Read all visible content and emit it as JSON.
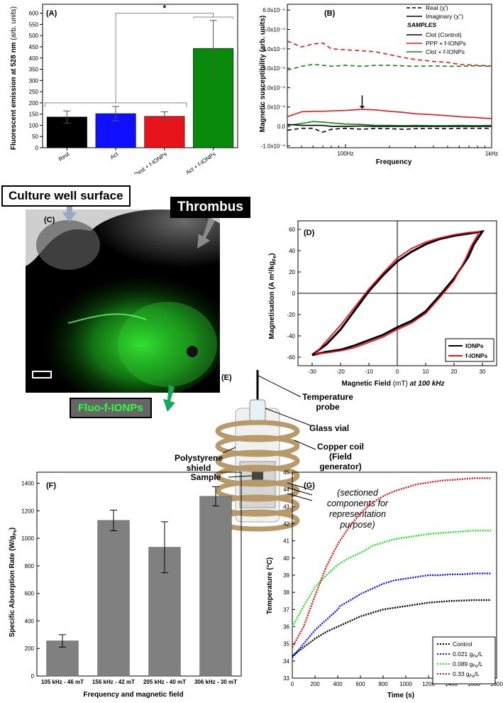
{
  "panelA": {
    "label": "(A)",
    "ylabel": "Fluorescent emission at 528 nm",
    "ylabel_unit": "(arb. units)",
    "sig": "*",
    "yticks": [
      "0",
      "50",
      "100",
      "150",
      "200",
      "250",
      "300",
      "350",
      "400",
      "450",
      "500",
      "550",
      "600"
    ]
  },
  "panelB": {
    "label": "(B)",
    "ylabel": "Magnetic susceptibility (arb. units)",
    "xlabel": "Frequency",
    "xticks": [
      "100Hz",
      "1kHz"
    ],
    "yticks": [
      "-1.0x10⁻⁴",
      "0.0",
      "1.0x10⁻⁴",
      "2.0x10⁻⁴",
      "3.0x10⁻⁴",
      "4.0x10⁻⁴",
      "5.0x10⁻⁴",
      "6.0x10⁻⁴"
    ],
    "legend_real": "Real (χ')",
    "legend_imag": "Imaginary (χ'')",
    "legend_samples": "SAMPLES",
    "legend_clot": "Clot (Control)",
    "legend_ppp": "PPP + f-IONPs",
    "legend_clotf": "Clot + f-IONPs"
  },
  "panelC": {
    "label": "(C)",
    "callout_well": "Culture well surface",
    "callout_thrombus": "Thrombus",
    "callout_fluo": "Fluo-f-IONPs"
  },
  "panelD": {
    "label": "(D)",
    "ylabel": "Magnetisation (A m²/kg",
    "ylabel_sub": "Fe",
    "xlabel": "Magnetic Field",
    "xlabel_unit": "(mT)",
    "xlabel_freq": "at 100 kHz",
    "legend": [
      "IONPs",
      "f-IONPs"
    ],
    "xticks": [
      "-30",
      "-20",
      "-10",
      "0",
      "10",
      "20",
      "30"
    ],
    "yticks": [
      "-60",
      "-40",
      "-20",
      "0",
      "20",
      "40",
      "60"
    ]
  },
  "panelE": {
    "label": "(E)",
    "temp_probe": "Temperature probe",
    "glass_vial": "Glass vial",
    "copper_coil": "Copper coil (Field generator)",
    "poly_shield": "Polystyrene shield",
    "sample": "Sample",
    "sectioned": "(sectioned components for representation purpose)"
  },
  "panelF": {
    "label": "(F)",
    "ylabel": "Specific Absorption Rate (W/g",
    "ylabel_sub": "Fe",
    "xlabel": "Frequency and magnetic field",
    "yticks": [
      "0",
      "200",
      "400",
      "600",
      "800",
      "1000",
      "1200",
      "1400"
    ]
  },
  "panelG": {
    "label": "(G)",
    "ylabel": "Temperature (°C)",
    "xlabel": "Time (s)",
    "xticks": [
      "0",
      "200",
      "400",
      "600",
      "800",
      "1000",
      "1200",
      "1400",
      "1600",
      "1800"
    ],
    "yticks": [
      "33",
      "34",
      "35",
      "36",
      "37",
      "38",
      "39",
      "40",
      "41",
      "42",
      "43",
      "44",
      "45"
    ],
    "legend_control": "Control",
    "legend_unit_prefix": "g",
    "legend_unit_sub": "Fe",
    "legend_unit_suffix": "/L"
  },
  "colors": {
    "black": "#000000",
    "blue": "#1010ff",
    "red": "#e8141c",
    "green": "#0a8a0a",
    "gray": "#808080",
    "lightgreen": "#22e822",
    "copper": "#b89a6a"
  },
  "chart_data": [
    {
      "id": "A",
      "type": "bar",
      "categories": [
        "Rest",
        "Act",
        "Rest + f-IONPs",
        "Act + f-IONPs"
      ],
      "values": [
        137,
        152,
        140,
        443
      ],
      "errors": [
        27,
        32,
        20,
        125
      ],
      "colors": [
        "#000000",
        "#1010ff",
        "#e8141c",
        "#0a8a0a"
      ],
      "ylim": [
        0,
        640
      ]
    },
    {
      "id": "B",
      "type": "line",
      "xscale": "log",
      "xlim": [
        40,
        1000
      ],
      "ylim": [
        -0.00011,
        0.00063
      ],
      "x": [
        40,
        50,
        60,
        70,
        80,
        100,
        130,
        160,
        200,
        250,
        300,
        400,
        500,
        600,
        800,
        1000
      ],
      "series": [
        {
          "name": "PPP + f-IONPs",
          "part": "real",
          "color": "#e8141c",
          "dashed": true,
          "values": [
            0.00044,
            0.00041,
            0.000425,
            0.00043,
            0.0004,
            0.000395,
            0.00039,
            0.000385,
            0.00037,
            0.000355,
            0.000345,
            0.000335,
            0.00033,
            0.00032,
            0.000315,
            0.000312
          ]
        },
        {
          "name": "Clot + f-IONPs",
          "part": "real",
          "color": "#0a8a0a",
          "dashed": true,
          "values": [
            0.00029,
            0.00031,
            0.00032,
            0.000315,
            0.00031,
            0.000315,
            0.00031,
            0.000315,
            0.000315,
            0.000312,
            0.00031,
            0.000312,
            0.00031,
            0.00031,
            0.000312,
            0.00031
          ]
        },
        {
          "name": "Clot (Control)",
          "part": "real",
          "color": "#000000",
          "dashed": true,
          "values": [
            -2e-05,
            -1e-05,
            -1e-05,
            -3e-05,
            -1.5e-05,
            -1e-05,
            -1.5e-05,
            -1e-05,
            -1.2e-05,
            -1.5e-05,
            -1.2e-05,
            -1e-05,
            -1.2e-05,
            -1e-05,
            -1e-05,
            -1e-05
          ]
        },
        {
          "name": "PPP + f-IONPs",
          "part": "imaginary",
          "color": "#e8141c",
          "dashed": false,
          "values": [
            5e-05,
            7.5e-05,
            7.8e-05,
            7.8e-05,
            8e-05,
            8.2e-05,
            8.8e-05,
            8.5e-05,
            7.8e-05,
            7.2e-05,
            6.5e-05,
            6e-05,
            5.5e-05,
            5e-05,
            4.5e-05,
            4e-05
          ]
        },
        {
          "name": "Clot + f-IONPs",
          "part": "imaginary",
          "color": "#0a8a0a",
          "dashed": false,
          "values": [
            5e-06,
            1.5e-05,
            2.5e-05,
            2.2e-05,
            1.8e-05,
            1.2e-05,
            1e-05,
            5e-06,
            5e-06,
            4e-06,
            5e-06,
            4e-06,
            4e-06,
            5e-06,
            4e-06,
            5e-06
          ]
        },
        {
          "name": "Clot (Control)",
          "part": "imaginary",
          "color": "#000000",
          "dashed": false,
          "values": [
            1e-05,
            5e-06,
            5e-06,
            5e-06,
            0.0,
            0.0,
            2e-06,
            0.0,
            0.0,
            0.0,
            0.0,
            0.0,
            0.0,
            0.0,
            0.0,
            0.0
          ]
        }
      ],
      "annotation_arrow_x": 130
    },
    {
      "id": "D",
      "type": "line",
      "xlim": [
        -35,
        35
      ],
      "ylim": [
        -68,
        68
      ],
      "series": [
        {
          "name": "IONPs",
          "color": "#000000",
          "upper": [
            [
              -30,
              -58
            ],
            [
              -25,
              -48
            ],
            [
              -20,
              -34
            ],
            [
              -15,
              -16
            ],
            [
              -10,
              2
            ],
            [
              -5,
              17
            ],
            [
              0,
              30
            ],
            [
              5,
              39
            ],
            [
              10,
              46
            ],
            [
              15,
              51
            ],
            [
              20,
              54
            ],
            [
              25,
              56
            ],
            [
              30,
              58
            ]
          ],
          "lower": [
            [
              30,
              58
            ],
            [
              27,
              46
            ],
            [
              25,
              34
            ],
            [
              20,
              14
            ],
            [
              15,
              -2
            ],
            [
              10,
              -17
            ],
            [
              5,
              -26
            ],
            [
              0,
              -32
            ],
            [
              -5,
              -39
            ],
            [
              -10,
              -44
            ],
            [
              -15,
              -49
            ],
            [
              -20,
              -53
            ],
            [
              -25,
              -55
            ],
            [
              -30,
              -58
            ]
          ]
        },
        {
          "name": "f-IONPs",
          "color": "#e8141c",
          "upper": [
            [
              -29,
              -57
            ],
            [
              -25,
              -45
            ],
            [
              -20,
              -30
            ],
            [
              -15,
              -13
            ],
            [
              -10,
              4
            ],
            [
              -5,
              19
            ],
            [
              0,
              33
            ],
            [
              5,
              42
            ],
            [
              10,
              48
            ],
            [
              15,
              52
            ],
            [
              20,
              55
            ],
            [
              25,
              57
            ],
            [
              29,
              58
            ]
          ],
          "lower": [
            [
              29,
              58
            ],
            [
              26,
              44
            ],
            [
              24,
              32
            ],
            [
              20,
              12
            ],
            [
              15,
              -4
            ],
            [
              10,
              -19
            ],
            [
              5,
              -28
            ],
            [
              0,
              -34
            ],
            [
              -5,
              -41
            ],
            [
              -10,
              -46
            ],
            [
              -15,
              -51
            ],
            [
              -20,
              -54
            ],
            [
              -25,
              -56
            ],
            [
              -29,
              -57
            ]
          ]
        }
      ]
    },
    {
      "id": "F",
      "type": "bar",
      "categories": [
        "105 kHz - 46 mT",
        "156 kHz - 42 mT",
        "205 kHz - 40 mT",
        "306 kHz - 30 mT"
      ],
      "values": [
        255,
        1130,
        935,
        1305
      ],
      "errors": [
        45,
        75,
        185,
        70
      ],
      "ylim": [
        0,
        1480
      ]
    },
    {
      "id": "G",
      "type": "line",
      "xlim": [
        0,
        1800
      ],
      "ylim": [
        33,
        45
      ],
      "series": [
        {
          "name": "Control",
          "color": "#000000",
          "x": [
            0,
            100,
            200,
            300,
            400,
            500,
            600,
            700,
            800,
            900,
            1000,
            1100,
            1200,
            1300,
            1400,
            1500,
            1600,
            1700,
            1750
          ],
          "values": [
            34.3,
            34.8,
            35.3,
            35.7,
            36.0,
            36.3,
            36.6,
            36.8,
            37.0,
            37.1,
            37.2,
            37.3,
            37.4,
            37.45,
            37.5,
            37.52,
            37.55,
            37.55,
            37.55
          ]
        },
        {
          "name": "0.021",
          "color": "#1010ff",
          "x": [
            0,
            100,
            200,
            300,
            400,
            420,
            500,
            600,
            700,
            800,
            900,
            1000,
            1100,
            1200,
            1300,
            1400,
            1500,
            1600,
            1700,
            1750
          ],
          "values": [
            34.2,
            35.0,
            35.8,
            36.4,
            37.0,
            37.2,
            37.5,
            37.9,
            38.2,
            38.5,
            38.7,
            38.8,
            38.9,
            39.0,
            39.0,
            39.05,
            39.05,
            39.1,
            39.1,
            39.1
          ]
        },
        {
          "name": "0.089",
          "color": "#22e822",
          "x": [
            0,
            100,
            200,
            300,
            400,
            500,
            600,
            680,
            700,
            800,
            900,
            1000,
            1100,
            1200,
            1300,
            1400,
            1500,
            1600,
            1700,
            1750
          ],
          "values": [
            36.0,
            37.2,
            38.3,
            39.0,
            39.6,
            40.0,
            40.3,
            40.6,
            40.7,
            40.9,
            41.1,
            41.2,
            41.3,
            41.4,
            41.45,
            41.5,
            41.55,
            41.6,
            41.6,
            41.6
          ]
        },
        {
          "name": "0.33",
          "color": "#e8141c",
          "x": [
            0,
            100,
            200,
            300,
            400,
            500,
            600,
            700,
            800,
            900,
            1000,
            1100,
            1200,
            1300,
            1400,
            1500,
            1600,
            1700,
            1750
          ],
          "values": [
            34.8,
            36.0,
            37.8,
            39.5,
            40.8,
            41.8,
            42.6,
            43.2,
            43.6,
            43.9,
            44.1,
            44.3,
            44.4,
            44.5,
            44.55,
            44.6,
            44.65,
            44.65,
            44.65
          ]
        }
      ]
    }
  ]
}
